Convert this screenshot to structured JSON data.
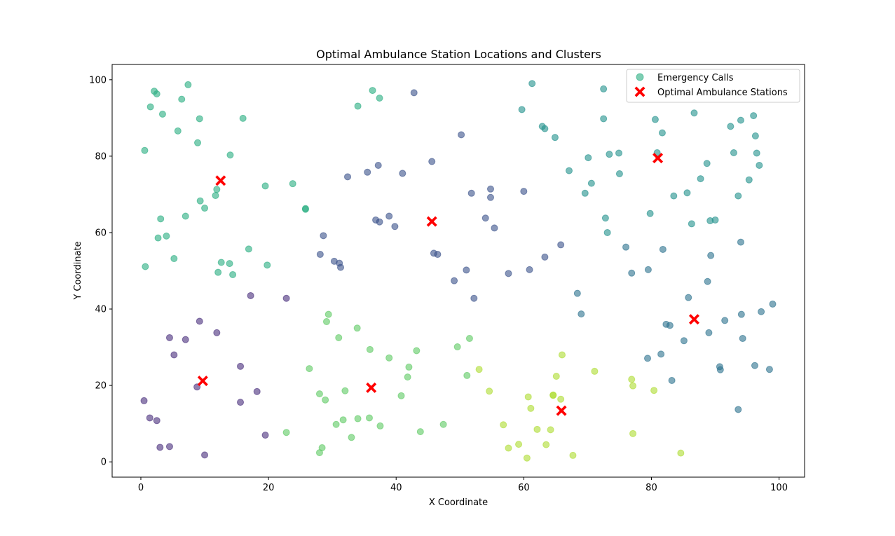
{
  "chart_data": {
    "type": "scatter",
    "title": "Optimal Ambulance Station Locations and Clusters",
    "xlabel": "X Coordinate",
    "ylabel": "Y Coordinate",
    "xlim": [
      -4.5,
      104.0
    ],
    "ylim": [
      -4.0,
      104.0
    ],
    "xticks": [
      0,
      20,
      40,
      60,
      80,
      100
    ],
    "yticks": [
      0,
      20,
      40,
      60,
      80,
      100
    ],
    "grid": false,
    "legend_position": "upper-right",
    "legend": {
      "calls_label": "Emergency Calls",
      "stations_label": "Optimal Ambulance Stations"
    },
    "cluster_colors": [
      "#472d7b",
      "#3b528b",
      "#2c728e",
      "#21918c",
      "#28ae80",
      "#5ec962",
      "#addc30",
      "#fde725"
    ],
    "station_color": "#ff0000",
    "series": [
      {
        "cluster": 0,
        "points": [
          [
            0.5,
            16
          ],
          [
            1.4,
            11.5
          ],
          [
            2.5,
            10.8
          ],
          [
            3,
            3.8
          ],
          [
            4.5,
            4
          ],
          [
            4.5,
            32.5
          ],
          [
            5.2,
            28
          ],
          [
            7,
            32
          ],
          [
            8.8,
            19.6
          ],
          [
            9.2,
            36.8
          ],
          [
            10,
            1.8
          ],
          [
            11.9,
            33.8
          ],
          [
            15.6,
            25
          ],
          [
            15.6,
            15.6
          ],
          [
            17.2,
            43.5
          ],
          [
            18.2,
            18.4
          ],
          [
            19.5,
            7
          ],
          [
            22.8,
            42.8
          ]
        ]
      },
      {
        "cluster": 1,
        "points": [
          [
            28.1,
            54.3
          ],
          [
            28.6,
            59.2
          ],
          [
            30.3,
            52.5
          ],
          [
            31.1,
            52
          ],
          [
            31.3,
            50.9
          ],
          [
            32.4,
            74.6
          ],
          [
            35.5,
            75.8
          ],
          [
            36.8,
            63.3
          ],
          [
            37.2,
            77.6
          ],
          [
            37.4,
            62.8
          ],
          [
            38.9,
            64.3
          ],
          [
            39.8,
            61.6
          ],
          [
            41,
            75.5
          ],
          [
            42.8,
            96.6
          ],
          [
            45.6,
            78.6
          ],
          [
            45.9,
            54.6
          ],
          [
            46.5,
            54.3
          ],
          [
            49.1,
            47.4
          ],
          [
            50.2,
            85.6
          ],
          [
            51,
            50.2
          ],
          [
            51.8,
            70.3
          ],
          [
            52.2,
            42.8
          ],
          [
            54,
            63.8
          ],
          [
            54.8,
            71.4
          ],
          [
            54.8,
            69.2
          ],
          [
            55.4,
            61.2
          ],
          [
            57.6,
            49.3
          ],
          [
            60,
            70.8
          ],
          [
            60.9,
            50.3
          ],
          [
            63.3,
            53.6
          ],
          [
            65.8,
            56.8
          ]
        ]
      },
      {
        "cluster": 2,
        "points": [
          [
            68.4,
            44.1
          ],
          [
            69,
            38.7
          ],
          [
            76,
            56.2
          ],
          [
            76.9,
            49.4
          ],
          [
            79.4,
            27.1
          ],
          [
            79.5,
            50.3
          ],
          [
            81.5,
            28.2
          ],
          [
            81.8,
            55.6
          ],
          [
            82.3,
            36
          ],
          [
            82.9,
            35.7
          ],
          [
            83.2,
            21.3
          ],
          [
            85.1,
            31.7
          ],
          [
            85.8,
            43
          ],
          [
            88.8,
            47.2
          ],
          [
            89,
            33.8
          ],
          [
            89.3,
            54
          ],
          [
            90.7,
            24.9
          ],
          [
            90.8,
            24.1
          ],
          [
            91.5,
            37
          ],
          [
            93.6,
            13.7
          ],
          [
            94,
            57.5
          ],
          [
            94.1,
            38.6
          ],
          [
            94.3,
            32.3
          ],
          [
            96.2,
            25.2
          ],
          [
            97.2,
            39.3
          ],
          [
            98.5,
            24.2
          ],
          [
            99,
            41.3
          ]
        ]
      },
      {
        "cluster": 3,
        "points": [
          [
            59.7,
            92.2
          ],
          [
            61.3,
            99
          ],
          [
            62.9,
            87.8
          ],
          [
            63.3,
            87.2
          ],
          [
            64.9,
            84.9
          ],
          [
            67.1,
            76.2
          ],
          [
            69.6,
            70.3
          ],
          [
            70.1,
            79.6
          ],
          [
            70.6,
            72.9
          ],
          [
            72.5,
            97.6
          ],
          [
            72.5,
            89.8
          ],
          [
            72.8,
            63.8
          ],
          [
            73.1,
            60
          ],
          [
            73.4,
            80.5
          ],
          [
            74.9,
            80.8
          ],
          [
            75,
            75.4
          ],
          [
            79.8,
            65
          ],
          [
            80.6,
            89.6
          ],
          [
            80.9,
            80.9
          ],
          [
            81.7,
            86.1
          ],
          [
            83.5,
            69.6
          ],
          [
            85.6,
            70.4
          ],
          [
            86.3,
            62.3
          ],
          [
            86.7,
            91.3
          ],
          [
            87.7,
            74.1
          ],
          [
            88.7,
            78.1
          ],
          [
            89.2,
            63.1
          ],
          [
            90,
            63.3
          ],
          [
            92.4,
            87.8
          ],
          [
            92.9,
            80.9
          ],
          [
            93.6,
            69.6
          ],
          [
            94,
            89.4
          ],
          [
            95.3,
            73.8
          ],
          [
            96,
            90.6
          ],
          [
            96.3,
            85.3
          ],
          [
            96.5,
            80.8
          ],
          [
            96.9,
            77.6
          ]
        ]
      },
      {
        "cluster": 4,
        "points": [
          [
            0.6,
            81.5
          ],
          [
            0.7,
            51.1
          ],
          [
            1.5,
            92.9
          ],
          [
            2.1,
            97
          ],
          [
            2.5,
            96.3
          ],
          [
            2.7,
            58.6
          ],
          [
            3.1,
            63.6
          ],
          [
            3.4,
            91
          ],
          [
            4,
            59.1
          ],
          [
            5.2,
            53.2
          ],
          [
            5.8,
            86.6
          ],
          [
            6.4,
            94.9
          ],
          [
            7,
            64.3
          ],
          [
            7.4,
            98.7
          ],
          [
            8.9,
            83.5
          ],
          [
            9.2,
            89.8
          ],
          [
            9.3,
            68.3
          ],
          [
            10,
            66.4
          ],
          [
            11.7,
            69.7
          ],
          [
            11.9,
            71.3
          ],
          [
            12.1,
            49.6
          ],
          [
            12.6,
            52.2
          ],
          [
            13.9,
            51.9
          ],
          [
            14,
            80.3
          ],
          [
            14.4,
            49
          ],
          [
            16,
            89.9
          ],
          [
            16.9,
            55.7
          ],
          [
            19.5,
            72.2
          ],
          [
            19.8,
            51.5
          ],
          [
            23.8,
            72.8
          ],
          [
            25.8,
            66.3
          ],
          [
            25.8,
            66.1
          ],
          [
            34,
            93.1
          ],
          [
            36.3,
            97.2
          ],
          [
            37.4,
            95.2
          ]
        ]
      },
      {
        "cluster": 5,
        "points": [
          [
            22.8,
            7.7
          ],
          [
            26.4,
            24.4
          ],
          [
            28,
            17.8
          ],
          [
            28,
            2.4
          ],
          [
            28.4,
            3.7
          ],
          [
            28.9,
            16.2
          ],
          [
            29.1,
            36.7
          ],
          [
            29.4,
            38.6
          ],
          [
            30.6,
            9.8
          ],
          [
            31,
            32.5
          ],
          [
            31.7,
            11
          ],
          [
            32,
            18.6
          ],
          [
            33,
            6.4
          ],
          [
            33.9,
            35
          ],
          [
            34,
            11.3
          ],
          [
            35.8,
            11.5
          ],
          [
            35.9,
            29.4
          ],
          [
            37.5,
            9.4
          ],
          [
            38.9,
            27.2
          ],
          [
            40.8,
            17.3
          ],
          [
            41.8,
            22.2
          ],
          [
            42,
            24.8
          ],
          [
            43.2,
            29.1
          ],
          [
            43.8,
            7.9
          ],
          [
            47.4,
            9.8
          ],
          [
            49.6,
            30.1
          ],
          [
            51.1,
            22.6
          ],
          [
            51.5,
            32.3
          ]
        ]
      },
      {
        "cluster": 6,
        "points": [
          [
            53,
            24.2
          ],
          [
            54.6,
            18.5
          ],
          [
            56.8,
            9.7
          ],
          [
            57.6,
            3.6
          ],
          [
            59.2,
            4.6
          ],
          [
            60.5,
            1
          ],
          [
            60.7,
            17
          ],
          [
            61.1,
            14
          ],
          [
            62.1,
            8.5
          ],
          [
            63.5,
            4.5
          ],
          [
            64.2,
            8.4
          ],
          [
            64.6,
            17.5
          ],
          [
            64.6,
            17.4
          ],
          [
            65.1,
            22.4
          ],
          [
            65.8,
            16.4
          ],
          [
            66,
            28
          ],
          [
            67.7,
            1.7
          ],
          [
            71.1,
            23.7
          ],
          [
            76.9,
            21.6
          ],
          [
            77.1,
            19.9
          ],
          [
            77.1,
            7.4
          ],
          [
            80.4,
            18.7
          ],
          [
            84.6,
            2.3
          ]
        ]
      }
    ],
    "stations": [
      [
        12.5,
        73.6
      ],
      [
        9.7,
        21.2
      ],
      [
        36.1,
        19.4
      ],
      [
        45.6,
        62.9
      ],
      [
        65.9,
        13.4
      ],
      [
        81,
        79.5
      ],
      [
        86.7,
        37.3
      ]
    ]
  }
}
